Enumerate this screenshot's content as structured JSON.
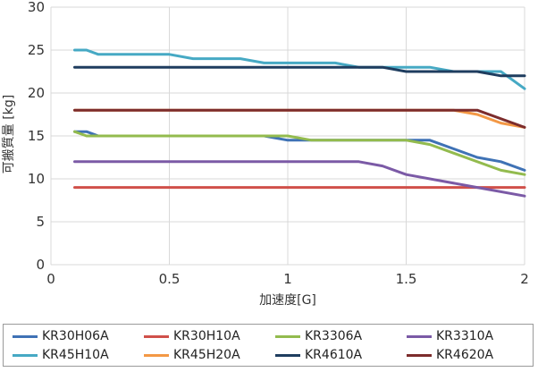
{
  "chart_data": {
    "type": "line",
    "xlabel": "加速度[G]",
    "ylabel": "可搬質量 [kg]",
    "xlim": [
      0,
      2
    ],
    "ylim": [
      0,
      30
    ],
    "xticks": [
      "0",
      "0.5",
      "1",
      "1.5",
      "2"
    ],
    "yticks": [
      "0",
      "5",
      "10",
      "15",
      "20",
      "25",
      "30"
    ],
    "grid": true,
    "legend_position": "bottom",
    "series": [
      {
        "name": "KR30H06A",
        "color": "#3f72b5",
        "points": [
          [
            0.1,
            15.5
          ],
          [
            0.15,
            15.5
          ],
          [
            0.2,
            15
          ],
          [
            0.9,
            15
          ],
          [
            1.0,
            14.5
          ],
          [
            1.6,
            14.5
          ],
          [
            1.8,
            12.5
          ],
          [
            1.9,
            12
          ],
          [
            2.0,
            11
          ]
        ]
      },
      {
        "name": "KR30H10A",
        "color": "#d0504a",
        "points": [
          [
            0.1,
            9
          ],
          [
            2.0,
            9
          ]
        ]
      },
      {
        "name": "KR3306A",
        "color": "#93bb4e",
        "points": [
          [
            0.1,
            15.5
          ],
          [
            0.15,
            15
          ],
          [
            1.0,
            15
          ],
          [
            1.1,
            14.5
          ],
          [
            1.5,
            14.5
          ],
          [
            1.6,
            14
          ],
          [
            1.9,
            11
          ],
          [
            2.0,
            10.5
          ]
        ]
      },
      {
        "name": "KR3310A",
        "color": "#7b5aa6",
        "points": [
          [
            0.1,
            12
          ],
          [
            1.3,
            12
          ],
          [
            1.4,
            11.5
          ],
          [
            1.5,
            10.5
          ],
          [
            1.8,
            9
          ],
          [
            2.0,
            8
          ]
        ]
      },
      {
        "name": "KR45H10A",
        "color": "#46a9c4",
        "points": [
          [
            0.1,
            25
          ],
          [
            0.15,
            25
          ],
          [
            0.2,
            24.5
          ],
          [
            0.5,
            24.5
          ],
          [
            0.6,
            24
          ],
          [
            0.8,
            24
          ],
          [
            0.9,
            23.5
          ],
          [
            1.2,
            23.5
          ],
          [
            1.3,
            23
          ],
          [
            1.6,
            23
          ],
          [
            1.7,
            22.5
          ],
          [
            1.9,
            22.5
          ],
          [
            2.0,
            20.5
          ]
        ]
      },
      {
        "name": "KR45H20A",
        "color": "#f39845",
        "points": [
          [
            0.1,
            18
          ],
          [
            1.7,
            18
          ],
          [
            1.8,
            17.5
          ],
          [
            1.9,
            16.5
          ],
          [
            2.0,
            16
          ]
        ]
      },
      {
        "name": "KR4610A",
        "color": "#1f3d5f",
        "points": [
          [
            0.1,
            23
          ],
          [
            1.4,
            23
          ],
          [
            1.5,
            22.5
          ],
          [
            1.8,
            22.5
          ],
          [
            1.9,
            22
          ],
          [
            2.0,
            22
          ]
        ]
      },
      {
        "name": "KR4620A",
        "color": "#7c2c2c",
        "points": [
          [
            0.1,
            18
          ],
          [
            1.8,
            18
          ],
          [
            2.0,
            16
          ]
        ]
      }
    ]
  }
}
